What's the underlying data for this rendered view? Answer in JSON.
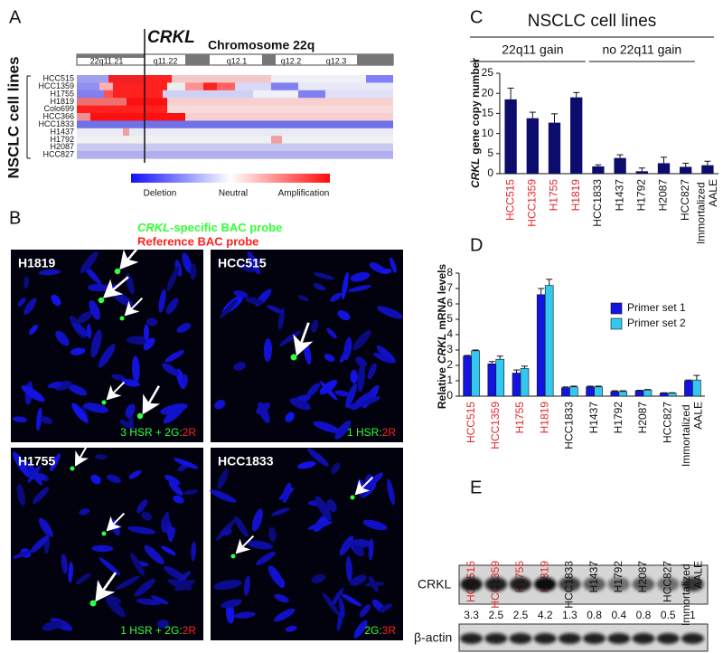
{
  "panel_labels": [
    "A",
    "B",
    "C",
    "D",
    "E"
  ],
  "panel_a": {
    "gene": "CRKL",
    "title": "Chromosome 22q",
    "bands": [
      "22q11.21",
      "q11.22",
      "q12.1",
      "q12.2",
      "q12.3"
    ],
    "cell_lines": [
      "HCC515",
      "HCC1359",
      "H1755",
      "H1819",
      "Colo699",
      "HCC366",
      "HCC1833",
      "H1437",
      "H1792",
      "H2087",
      "HCC827"
    ],
    "axis_label": "NSCLC cell lines",
    "legend": [
      "Deletion",
      "Neutral",
      "Amplification"
    ]
  },
  "panel_b": {
    "probe_gene": "CRKL",
    "probe_rest": "-specific BAC probe",
    "reference_probe": "Reference BAC probe",
    "images": [
      {
        "cell_line": "H1819",
        "caption_green": "3 HSR + 2G:",
        "caption_red": "2R"
      },
      {
        "cell_line": "HCC515",
        "caption_green": "1 HSR:",
        "caption_red": "2R"
      },
      {
        "cell_line": "H1755",
        "caption_green": "1 HSR + 2G:",
        "caption_red": "2R"
      },
      {
        "cell_line": "HCC1833",
        "caption_green": "2G:",
        "caption_red": "3R"
      }
    ]
  },
  "chart_data": [
    {
      "type": "bar",
      "title": "NSCLC cell lines",
      "groups": [
        "22q11 gain",
        "no 22q11 gain"
      ],
      "ylabel_italic": "CRKL",
      "ylabel": "gene copy number",
      "categories": [
        "HCC515",
        "HCC1359",
        "H1755",
        "H1819",
        "HCC1833",
        "H1437",
        "H1792",
        "H2087",
        "HCC827",
        "Immortalized AALE"
      ],
      "category_colors": [
        "#e3262b",
        "#e3262b",
        "#e3262b",
        "#e3262b",
        "#111111",
        "#111111",
        "#111111",
        "#111111",
        "#111111",
        "#111111"
      ],
      "values": [
        18.5,
        13.8,
        12.7,
        19,
        1.8,
        3.9,
        0.6,
        2.6,
        1.7,
        2.1
      ],
      "errors": [
        2.8,
        1.5,
        2.2,
        1.2,
        0.4,
        0.8,
        0.8,
        1.5,
        0.9,
        1.0
      ],
      "color": "#0c0c6c",
      "ylim": [
        0,
        25
      ],
      "yticks": [
        0,
        5,
        10,
        15,
        20,
        25
      ]
    },
    {
      "type": "grouped_bar",
      "ylabel_start": "Relative",
      "ylabel_italic": "CRKL",
      "ylabel_end": "mRNA levels",
      "categories": [
        "HCC515",
        "HCC1359",
        "H1755",
        "H1819",
        "HCC1833",
        "H1437",
        "H1792",
        "H2087",
        "HCC827",
        "Immortalized AALE"
      ],
      "category_colors": [
        "#e3262b",
        "#e3262b",
        "#e3262b",
        "#e3262b",
        "#111111",
        "#111111",
        "#111111",
        "#111111",
        "#111111",
        "#111111"
      ],
      "series": [
        {
          "name": "Primer set 1",
          "color": "#1414e0",
          "values": [
            2.6,
            2.1,
            1.5,
            6.6,
            0.55,
            0.6,
            0.3,
            0.35,
            0.2,
            1.0
          ],
          "errors": [
            0.05,
            0.15,
            0.2,
            0.4,
            0.05,
            0.05,
            0.05,
            0.03,
            0.02,
            0.05
          ]
        },
        {
          "name": "Primer set 2",
          "color": "#33c8f0",
          "values": [
            2.95,
            2.4,
            1.8,
            7.2,
            0.6,
            0.6,
            0.3,
            0.4,
            0.2,
            1.05
          ],
          "errors": [
            0.05,
            0.2,
            0.15,
            0.4,
            0.05,
            0.05,
            0.05,
            0.03,
            0.02,
            0.3
          ]
        }
      ],
      "ylim": [
        0,
        8
      ],
      "yticks": [
        0,
        1,
        2,
        3,
        4,
        5,
        6,
        7,
        8
      ],
      "legend": "right"
    }
  ],
  "panel_e": {
    "lanes": [
      "HCC515",
      "HCC1359",
      "H1755",
      "H1819",
      "HCC1833",
      "H1437",
      "H1792",
      "H2087",
      "HCC827",
      "Immortalized AALE"
    ],
    "lane_colors": [
      "#e3262b",
      "#e3262b",
      "#e3262b",
      "#e3262b",
      "#111111",
      "#111111",
      "#111111",
      "#111111",
      "#111111",
      "#111111"
    ],
    "protein": "CRKL",
    "ratios": [
      3.3,
      2.5,
      2.5,
      4.2,
      1.3,
      0.8,
      0.4,
      0.8,
      0.5,
      1
    ],
    "loading_control": "β-actin"
  }
}
